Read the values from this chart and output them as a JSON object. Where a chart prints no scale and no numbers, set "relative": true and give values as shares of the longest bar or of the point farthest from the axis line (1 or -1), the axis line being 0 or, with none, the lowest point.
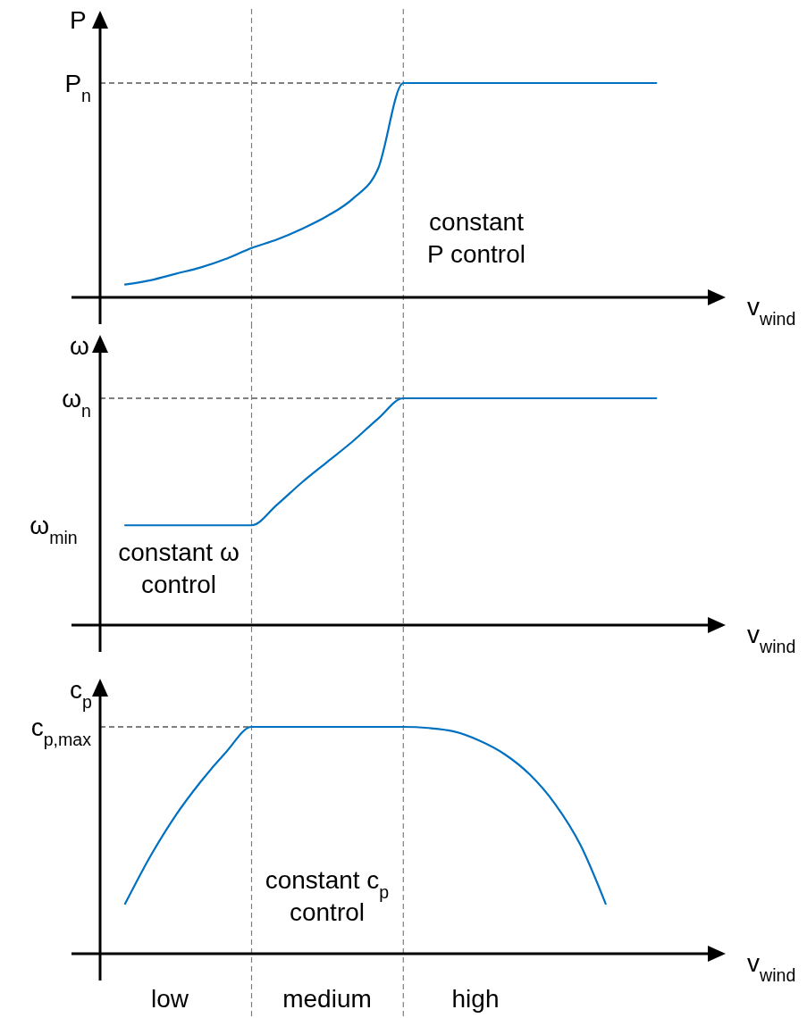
{
  "chart_data": [
    {
      "type": "line",
      "relative": true,
      "ylabel": "P",
      "xlabel": "v$_{wind}$",
      "categories": [
        null,
        null,
        null,
        null,
        null,
        null,
        null,
        null,
        null,
        null,
        null,
        null,
        null,
        null,
        null,
        null,
        null,
        null,
        null,
        null,
        null,
        null
      ],
      "series": [
        {
          "color": "#0070c0",
          "values": [
            0.06,
            0.08,
            0.11,
            0.14,
            0.18,
            0.23,
            0.27,
            0.32,
            0.38,
            0.46,
            0.6,
            1,
            1,
            1,
            1,
            1,
            1,
            1,
            1,
            1,
            1,
            1
          ]
        }
      ],
      "ref_lines": [
        {
          "axis": "y",
          "value": 1,
          "label": "P$_{n}$",
          "line_style": "dashed",
          "color": "#000000"
        }
      ],
      "annotations": [
        "constant\nP control"
      ]
    },
    {
      "type": "line",
      "relative": true,
      "ylabel": "ω",
      "xlabel": "v$_{wind}$",
      "categories": [
        null,
        null,
        null,
        null,
        null,
        null,
        null,
        null,
        null,
        null,
        null,
        null,
        null,
        null,
        null,
        null,
        null,
        null,
        null,
        null,
        null,
        null
      ],
      "series": [
        {
          "color": "#0070c0",
          "values": [
            0.44,
            0.44,
            0.44,
            0.44,
            0.44,
            0.44,
            0.53,
            0.63,
            0.72,
            0.81,
            0.91,
            1,
            1,
            1,
            1,
            1,
            1,
            1,
            1,
            1,
            1,
            1
          ]
        }
      ],
      "ref_lines": [
        {
          "axis": "y",
          "value": 1,
          "label": "ω$_{n}$",
          "line_style": "dashed",
          "color": "#000000"
        }
      ],
      "annotations": [
        "constant ω\ncontrol",
        "ω$_{min}$"
      ]
    },
    {
      "type": "line",
      "relative": true,
      "ylabel": "c$_{p}$",
      "xlabel": "v$_{wind}$",
      "categories": [
        null,
        null,
        null,
        null,
        null,
        null,
        null,
        null,
        null,
        null,
        null,
        null,
        null,
        null,
        null,
        null,
        null,
        null,
        null,
        null,
        null,
        null
      ],
      "series": [
        {
          "color": "#0070c0",
          "values": [
            0.22,
            0.43,
            0.61,
            0.76,
            0.89,
            1,
            1,
            1,
            1,
            1,
            1,
            1,
            0.995,
            0.98,
            0.94,
            0.88,
            0.79,
            0.66,
            0.48,
            0.22,
            null,
            null
          ]
        }
      ],
      "ref_lines": [
        {
          "axis": "y",
          "value": 1,
          "label": "c$_{p,max}$",
          "line_style": "dashed",
          "color": "#000000"
        }
      ],
      "annotations": [
        "constant c$_{p}$\ncontrol",
        "low",
        "medium",
        "high"
      ]
    }
  ]
}
